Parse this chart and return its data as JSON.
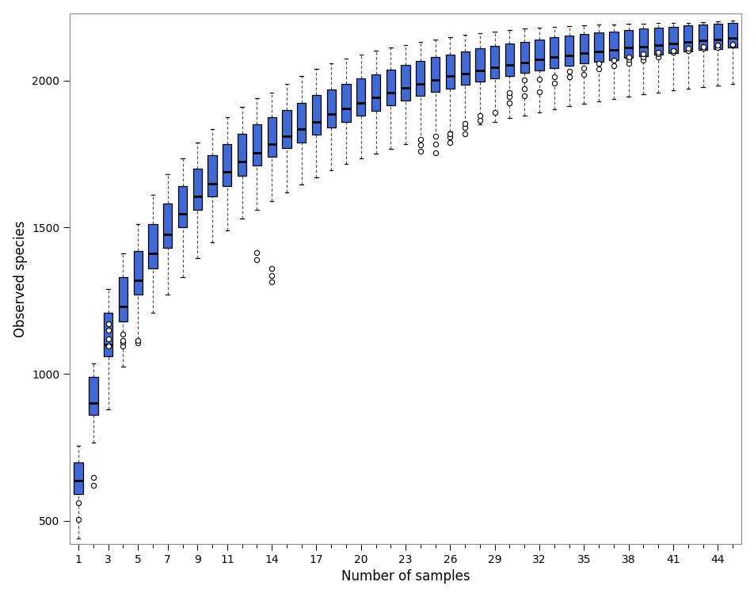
{
  "xlabel": "Number of samples",
  "ylabel": "Observed species",
  "xlim": [
    0.4,
    45.6
  ],
  "ylim": [
    420,
    2230
  ],
  "yticks": [
    500,
    1000,
    1500,
    2000
  ],
  "xtick_labels": [
    1,
    3,
    5,
    7,
    9,
    11,
    14,
    17,
    20,
    23,
    26,
    29,
    32,
    35,
    38,
    41,
    44
  ],
  "box_color": "#4169D4",
  "median_color": "#000000",
  "background_color": "#ffffff",
  "n_samples": 45,
  "boxes": [
    {
      "n": 1,
      "q1": 590,
      "med": 638,
      "q3": 700,
      "lo": 440,
      "hi": 755,
      "out": [
        505,
        560
      ]
    },
    {
      "n": 2,
      "q1": 860,
      "med": 900,
      "q3": 990,
      "lo": 765,
      "hi": 1035,
      "out": [
        620,
        648
      ]
    },
    {
      "n": 3,
      "q1": 1060,
      "med": 1100,
      "q3": 1210,
      "lo": 880,
      "hi": 1290,
      "out": [
        1095,
        1120,
        1150,
        1170
      ]
    },
    {
      "n": 4,
      "q1": 1180,
      "med": 1230,
      "q3": 1330,
      "lo": 1025,
      "hi": 1410,
      "out": [
        1095,
        1110,
        1115,
        1135
      ]
    },
    {
      "n": 5,
      "q1": 1270,
      "med": 1320,
      "q3": 1420,
      "lo": 1120,
      "hi": 1510,
      "out": [
        1105,
        1115
      ]
    },
    {
      "n": 6,
      "q1": 1360,
      "med": 1410,
      "q3": 1510,
      "lo": 1210,
      "hi": 1610,
      "out": []
    },
    {
      "n": 7,
      "q1": 1430,
      "med": 1475,
      "q3": 1580,
      "lo": 1270,
      "hi": 1680,
      "out": []
    },
    {
      "n": 8,
      "q1": 1500,
      "med": 1545,
      "q3": 1640,
      "lo": 1330,
      "hi": 1735,
      "out": []
    },
    {
      "n": 9,
      "q1": 1560,
      "med": 1605,
      "q3": 1700,
      "lo": 1395,
      "hi": 1790,
      "out": []
    },
    {
      "n": 10,
      "q1": 1605,
      "med": 1650,
      "q3": 1745,
      "lo": 1450,
      "hi": 1835,
      "out": []
    },
    {
      "n": 11,
      "q1": 1640,
      "med": 1690,
      "q3": 1785,
      "lo": 1490,
      "hi": 1875,
      "out": []
    },
    {
      "n": 12,
      "q1": 1675,
      "med": 1725,
      "q3": 1820,
      "lo": 1530,
      "hi": 1910,
      "out": []
    },
    {
      "n": 13,
      "q1": 1710,
      "med": 1755,
      "q3": 1850,
      "lo": 1560,
      "hi": 1940,
      "out": [
        1390,
        1415
      ]
    },
    {
      "n": 14,
      "q1": 1740,
      "med": 1785,
      "q3": 1875,
      "lo": 1590,
      "hi": 1960,
      "out": [
        1315,
        1335,
        1360
      ]
    },
    {
      "n": 15,
      "q1": 1770,
      "med": 1810,
      "q3": 1900,
      "lo": 1620,
      "hi": 1990,
      "out": []
    },
    {
      "n": 16,
      "q1": 1790,
      "med": 1835,
      "q3": 1925,
      "lo": 1645,
      "hi": 2015,
      "out": []
    },
    {
      "n": 17,
      "q1": 1815,
      "med": 1860,
      "q3": 1950,
      "lo": 1670,
      "hi": 2040,
      "out": []
    },
    {
      "n": 18,
      "q1": 1840,
      "med": 1885,
      "q3": 1970,
      "lo": 1695,
      "hi": 2060,
      "out": []
    },
    {
      "n": 19,
      "q1": 1860,
      "med": 1905,
      "q3": 1990,
      "lo": 1715,
      "hi": 2075,
      "out": []
    },
    {
      "n": 20,
      "q1": 1880,
      "med": 1925,
      "q3": 2008,
      "lo": 1735,
      "hi": 2090,
      "out": []
    },
    {
      "n": 21,
      "q1": 1898,
      "med": 1942,
      "q3": 2022,
      "lo": 1752,
      "hi": 2102,
      "out": []
    },
    {
      "n": 22,
      "q1": 1915,
      "med": 1958,
      "q3": 2038,
      "lo": 1768,
      "hi": 2112,
      "out": []
    },
    {
      "n": 23,
      "q1": 1932,
      "med": 1975,
      "q3": 2054,
      "lo": 1783,
      "hi": 2122,
      "out": []
    },
    {
      "n": 24,
      "q1": 1948,
      "med": 1990,
      "q3": 2068,
      "lo": 1798,
      "hi": 2132,
      "out": [
        1760,
        1780,
        1800
      ]
    },
    {
      "n": 25,
      "q1": 1962,
      "med": 2002,
      "q3": 2080,
      "lo": 1812,
      "hi": 2140,
      "out": [
        1755,
        1785,
        1810
      ]
    },
    {
      "n": 26,
      "q1": 1974,
      "med": 2015,
      "q3": 2090,
      "lo": 1826,
      "hi": 2148,
      "out": [
        1790,
        1808,
        1818
      ]
    },
    {
      "n": 27,
      "q1": 1986,
      "med": 2025,
      "q3": 2100,
      "lo": 1838,
      "hi": 2155,
      "out": [
        1820,
        1840,
        1855
      ]
    },
    {
      "n": 28,
      "q1": 1996,
      "med": 2035,
      "q3": 2110,
      "lo": 1850,
      "hi": 2162,
      "out": [
        1865,
        1882
      ]
    },
    {
      "n": 29,
      "q1": 2007,
      "med": 2045,
      "q3": 2118,
      "lo": 1860,
      "hi": 2167,
      "out": [
        1892
      ]
    },
    {
      "n": 30,
      "q1": 2017,
      "med": 2055,
      "q3": 2126,
      "lo": 1872,
      "hi": 2172,
      "out": [
        1925,
        1945,
        1960
      ]
    },
    {
      "n": 31,
      "q1": 2026,
      "med": 2063,
      "q3": 2133,
      "lo": 1882,
      "hi": 2177,
      "out": [
        1948,
        1972,
        2002
      ]
    },
    {
      "n": 32,
      "q1": 2035,
      "med": 2072,
      "q3": 2140,
      "lo": 1893,
      "hi": 2180,
      "out": [
        1963,
        2004
      ]
    },
    {
      "n": 33,
      "q1": 2043,
      "med": 2080,
      "q3": 2147,
      "lo": 1903,
      "hi": 2183,
      "out": [
        1992,
        2012
      ]
    },
    {
      "n": 34,
      "q1": 2050,
      "med": 2087,
      "q3": 2153,
      "lo": 1912,
      "hi": 2186,
      "out": [
        2012,
        2032
      ]
    },
    {
      "n": 35,
      "q1": 2058,
      "med": 2094,
      "q3": 2159,
      "lo": 1921,
      "hi": 2188,
      "out": [
        2022,
        2042
      ]
    },
    {
      "n": 36,
      "q1": 2065,
      "med": 2100,
      "q3": 2163,
      "lo": 1930,
      "hi": 2190,
      "out": [
        2040,
        2060
      ]
    },
    {
      "n": 37,
      "q1": 2071,
      "med": 2106,
      "q3": 2168,
      "lo": 1938,
      "hi": 2192,
      "out": [
        2050,
        2070
      ]
    },
    {
      "n": 38,
      "q1": 2077,
      "med": 2112,
      "q3": 2173,
      "lo": 1946,
      "hi": 2193,
      "out": [
        2060,
        2072,
        2081
      ]
    },
    {
      "n": 39,
      "q1": 2083,
      "med": 2117,
      "q3": 2177,
      "lo": 1953,
      "hi": 2195,
      "out": [
        2070,
        2082,
        2092
      ]
    },
    {
      "n": 40,
      "q1": 2088,
      "med": 2122,
      "q3": 2181,
      "lo": 1960,
      "hi": 2196,
      "out": [
        2082,
        2092,
        2097
      ]
    },
    {
      "n": 41,
      "q1": 2094,
      "med": 2127,
      "q3": 2184,
      "lo": 1966,
      "hi": 2197,
      "out": [
        2097,
        2103
      ]
    },
    {
      "n": 42,
      "q1": 2099,
      "med": 2132,
      "q3": 2188,
      "lo": 1972,
      "hi": 2198,
      "out": [
        2103,
        2110
      ]
    },
    {
      "n": 43,
      "q1": 2104,
      "med": 2137,
      "q3": 2191,
      "lo": 1978,
      "hi": 2200,
      "out": [
        2110,
        2117
      ]
    },
    {
      "n": 44,
      "q1": 2108,
      "med": 2141,
      "q3": 2194,
      "lo": 1984,
      "hi": 2202,
      "out": [
        2114,
        2120
      ]
    },
    {
      "n": 45,
      "q1": 2113,
      "med": 2146,
      "q3": 2197,
      "lo": 1990,
      "hi": 2204,
      "out": [
        2120,
        2125
      ]
    }
  ]
}
